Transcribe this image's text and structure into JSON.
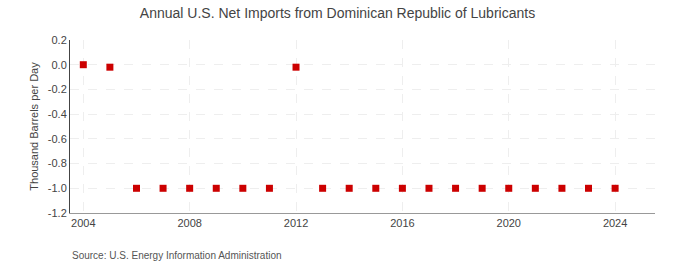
{
  "chart_data": {
    "type": "scatter",
    "title": "Annual U.S. Net Imports from Dominican Republic of Lubricants",
    "ylabel": "Thousand Barrels per Day",
    "annotations": [
      "Source: U.S. Energy Information Administration"
    ],
    "x": [
      2004,
      2005,
      2006,
      2007,
      2008,
      2009,
      2010,
      2011,
      2012,
      2013,
      2014,
      2015,
      2016,
      2017,
      2018,
      2019,
      2020,
      2021,
      2022,
      2023,
      2024
    ],
    "values": [
      0.0,
      -0.02,
      -1.0,
      -1.0,
      -1.0,
      -1.0,
      -1.0,
      -1.0,
      -0.02,
      -1.0,
      -1.0,
      -1.0,
      -1.0,
      -1.0,
      -1.0,
      -1.0,
      -1.0,
      -1.0,
      -1.0,
      -1.0,
      -1.0
    ],
    "color": "#cc0000",
    "marker": "square",
    "xlim": [
      2003.5,
      2025.5
    ],
    "ylim": [
      -1.2,
      0.2
    ],
    "xticks": [
      2004,
      2008,
      2012,
      2016,
      2020,
      2024
    ],
    "yticks": [
      0.2,
      {
        "value": 0,
        "label": "0.0"
      },
      -0.2,
      -0.4,
      -0.6,
      -0.8,
      {
        "value": -1,
        "label": "-1.0"
      },
      -1.2
    ],
    "grid": true
  }
}
